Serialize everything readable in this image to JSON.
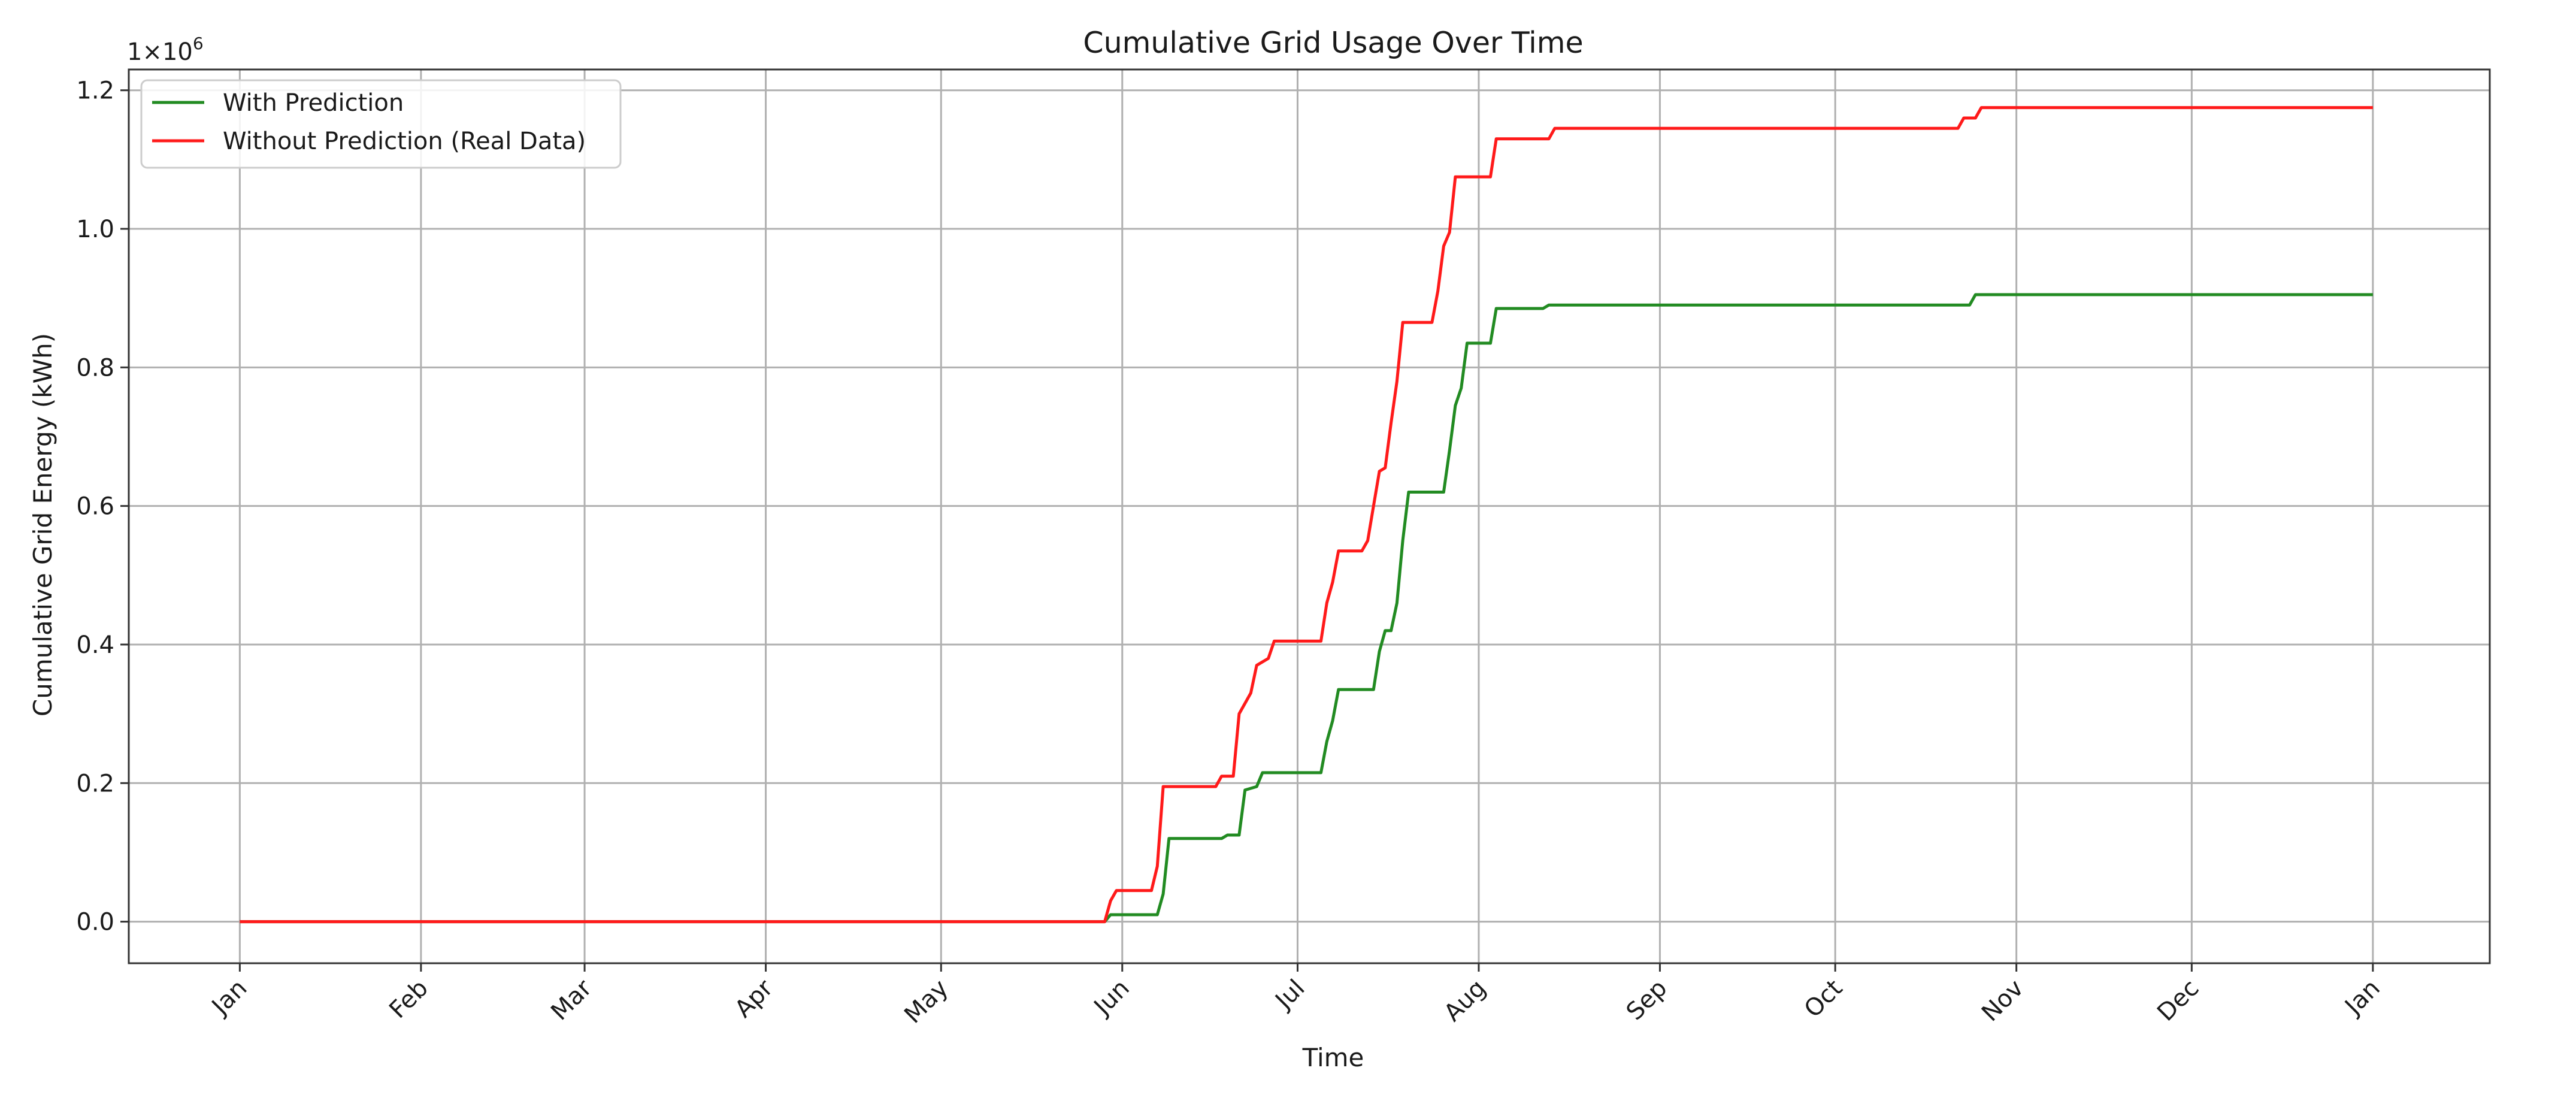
{
  "chart_data": {
    "type": "line",
    "title": "Cumulative Grid Usage Over Time",
    "xlabel": "Time",
    "ylabel": "Cumulative Grid Energy (kWh)",
    "y_multiplier_label": "1×10",
    "y_multiplier_exp": "6",
    "x_ticks": [
      {
        "label": "Jan",
        "date": "2023-01-01"
      },
      {
        "label": "Feb",
        "date": "2023-02-01"
      },
      {
        "label": "Mar",
        "date": "2023-03-01"
      },
      {
        "label": "Apr",
        "date": "2023-04-01"
      },
      {
        "label": "May",
        "date": "2023-05-01"
      },
      {
        "label": "Jun",
        "date": "2023-06-01"
      },
      {
        "label": "Jul",
        "date": "2023-07-01"
      },
      {
        "label": "Aug",
        "date": "2023-08-01"
      },
      {
        "label": "Sep",
        "date": "2023-09-01"
      },
      {
        "label": "Oct",
        "date": "2023-10-01"
      },
      {
        "label": "Nov",
        "date": "2023-11-01"
      },
      {
        "label": "Dec",
        "date": "2023-12-01"
      },
      {
        "label": "Jan",
        "date": "2024-01-01"
      }
    ],
    "y_ticks": [
      {
        "label": "0.0",
        "value": 0.0
      },
      {
        "label": "0.2",
        "value": 0.2
      },
      {
        "label": "0.4",
        "value": 0.4
      },
      {
        "label": "0.6",
        "value": 0.6
      },
      {
        "label": "0.8",
        "value": 0.8
      },
      {
        "label": "1.0",
        "value": 1.0
      },
      {
        "label": "1.2",
        "value": 1.2
      }
    ],
    "xlim": [
      "2022-12-13",
      "2024-01-21"
    ],
    "ylim": [
      -0.06,
      1.23
    ],
    "y_units_scale": 1000000,
    "grid": true,
    "legend_position": "top-left",
    "series": [
      {
        "name": "With Prediction",
        "color": "#228b22",
        "points": [
          [
            "2023-01-01",
            0.0
          ],
          [
            "2023-05-29",
            0.0
          ],
          [
            "2023-05-30",
            0.01
          ],
          [
            "2023-06-07",
            0.01
          ],
          [
            "2023-06-08",
            0.04
          ],
          [
            "2023-06-09",
            0.12
          ],
          [
            "2023-06-18",
            0.12
          ],
          [
            "2023-06-19",
            0.125
          ],
          [
            "2023-06-21",
            0.125
          ],
          [
            "2023-06-22",
            0.19
          ],
          [
            "2023-06-24",
            0.195
          ],
          [
            "2023-06-25",
            0.215
          ],
          [
            "2023-07-05",
            0.215
          ],
          [
            "2023-07-06",
            0.26
          ],
          [
            "2023-07-07",
            0.29
          ],
          [
            "2023-07-08",
            0.335
          ],
          [
            "2023-07-14",
            0.335
          ],
          [
            "2023-07-15",
            0.39
          ],
          [
            "2023-07-16",
            0.42
          ],
          [
            "2023-07-17",
            0.42
          ],
          [
            "2023-07-18",
            0.46
          ],
          [
            "2023-07-19",
            0.55
          ],
          [
            "2023-07-20",
            0.62
          ],
          [
            "2023-07-26",
            0.62
          ],
          [
            "2023-07-27",
            0.68
          ],
          [
            "2023-07-28",
            0.745
          ],
          [
            "2023-07-29",
            0.77
          ],
          [
            "2023-07-30",
            0.835
          ],
          [
            "2023-08-03",
            0.835
          ],
          [
            "2023-08-04",
            0.885
          ],
          [
            "2023-08-12",
            0.885
          ],
          [
            "2023-08-13",
            0.89
          ],
          [
            "2023-10-24",
            0.89
          ],
          [
            "2023-10-25",
            0.905
          ],
          [
            "2024-01-01",
            0.905
          ]
        ]
      },
      {
        "name": "Without Prediction (Real Data)",
        "color": "#ff1a1a",
        "points": [
          [
            "2023-01-01",
            0.0
          ],
          [
            "2023-05-29",
            0.0
          ],
          [
            "2023-05-30",
            0.03
          ],
          [
            "2023-05-31",
            0.045
          ],
          [
            "2023-06-06",
            0.045
          ],
          [
            "2023-06-07",
            0.08
          ],
          [
            "2023-06-08",
            0.195
          ],
          [
            "2023-06-17",
            0.195
          ],
          [
            "2023-06-18",
            0.21
          ],
          [
            "2023-06-20",
            0.21
          ],
          [
            "2023-06-21",
            0.3
          ],
          [
            "2023-06-23",
            0.33
          ],
          [
            "2023-06-24",
            0.37
          ],
          [
            "2023-06-26",
            0.38
          ],
          [
            "2023-06-27",
            0.405
          ],
          [
            "2023-07-05",
            0.405
          ],
          [
            "2023-07-06",
            0.46
          ],
          [
            "2023-07-07",
            0.49
          ],
          [
            "2023-07-08",
            0.535
          ],
          [
            "2023-07-12",
            0.535
          ],
          [
            "2023-07-13",
            0.55
          ],
          [
            "2023-07-14",
            0.6
          ],
          [
            "2023-07-15",
            0.65
          ],
          [
            "2023-07-16",
            0.655
          ],
          [
            "2023-07-17",
            0.72
          ],
          [
            "2023-07-18",
            0.78
          ],
          [
            "2023-07-19",
            0.865
          ],
          [
            "2023-07-24",
            0.865
          ],
          [
            "2023-07-25",
            0.91
          ],
          [
            "2023-07-26",
            0.975
          ],
          [
            "2023-07-27",
            0.995
          ],
          [
            "2023-07-28",
            1.075
          ],
          [
            "2023-08-03",
            1.075
          ],
          [
            "2023-08-04",
            1.13
          ],
          [
            "2023-08-13",
            1.13
          ],
          [
            "2023-08-14",
            1.145
          ],
          [
            "2023-10-22",
            1.145
          ],
          [
            "2023-10-23",
            1.16
          ],
          [
            "2023-10-25",
            1.16
          ],
          [
            "2023-10-26",
            1.175
          ],
          [
            "2024-01-01",
            1.175
          ]
        ]
      }
    ]
  }
}
